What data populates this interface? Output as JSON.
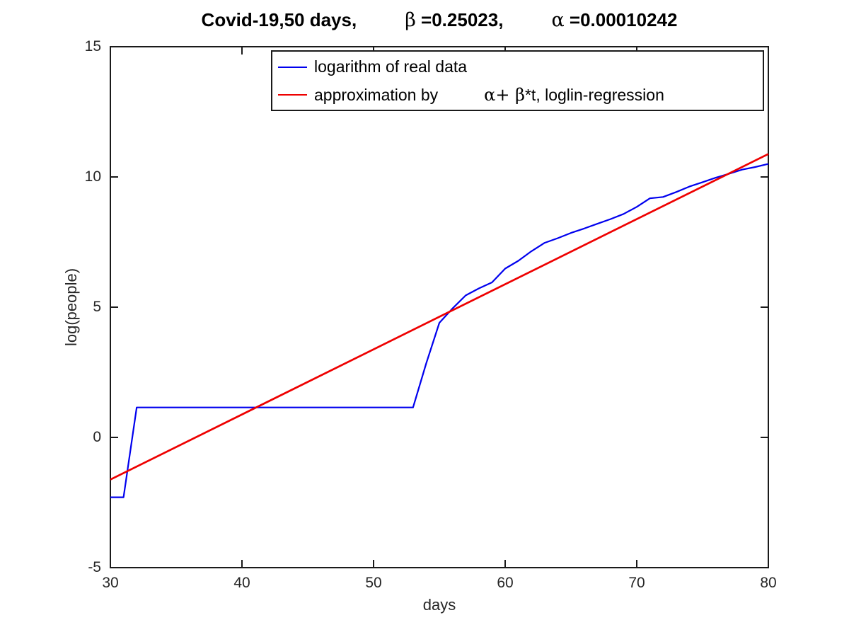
{
  "title": {
    "seg0": "Covid-19,50 days,",
    "seg1": "β",
    "seg2": " =0.25023,",
    "seg3": "α",
    "seg4": " =0.00010242"
  },
  "legend": {
    "item1_label": "logarithm of real data",
    "item2_label_a": "approximation by",
    "item2_label_b": "α+ β",
    "item2_label_c": "*t, loglin-regression"
  },
  "chart_data": {
    "type": "line",
    "title": "Covid-19,50 days, β =0.25023, α =0.00010242",
    "xlabel": "days",
    "ylabel": "log(people)",
    "xlim": [
      30,
      80
    ],
    "ylim": [
      -5,
      15
    ],
    "x_ticks": [
      30,
      40,
      50,
      60,
      70,
      80
    ],
    "y_ticks": [
      -5,
      0,
      5,
      10,
      15
    ],
    "grid": false,
    "legend_position": "top-right-inside",
    "axis_color": "#1a1a1a",
    "series": [
      {
        "name": "logarithm of real data",
        "color": "#0000ee",
        "width": 2.2,
        "x": [
          30,
          31,
          32,
          35,
          40,
          45,
          50,
          53,
          54,
          55,
          56,
          57,
          58,
          59,
          60,
          61,
          62,
          63,
          64,
          65,
          66,
          67,
          68,
          69,
          70,
          71,
          72,
          73,
          74,
          75,
          76,
          77,
          78,
          79,
          80
        ],
        "y": [
          -2.3,
          -2.3,
          1.15,
          1.15,
          1.15,
          1.15,
          1.15,
          1.15,
          2.84,
          4.4,
          4.95,
          5.45,
          5.72,
          5.95,
          6.48,
          6.78,
          7.15,
          7.47,
          7.65,
          7.85,
          8.02,
          8.2,
          8.38,
          8.58,
          8.85,
          9.18,
          9.23,
          9.42,
          9.63,
          9.8,
          9.97,
          10.12,
          10.28,
          10.38,
          10.5
        ]
      },
      {
        "name": "approximation by α+ β*t, loglin-regression",
        "color": "#ee0000",
        "width": 2.7,
        "x": [
          30,
          80
        ],
        "y": [
          -1.62,
          10.88
        ]
      }
    ]
  }
}
